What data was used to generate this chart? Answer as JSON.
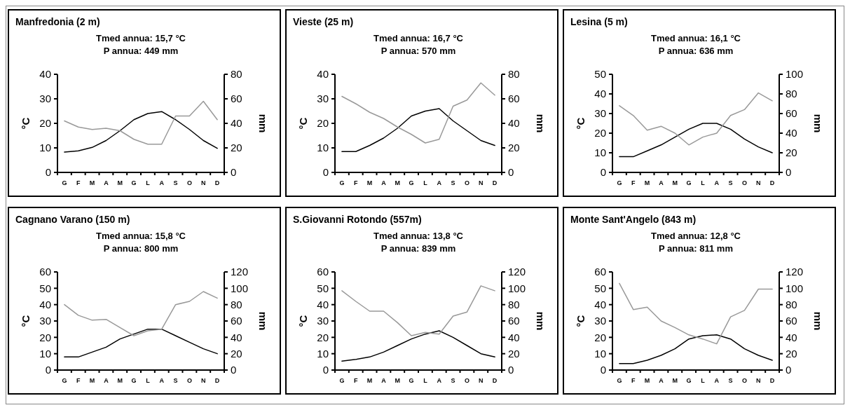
{
  "chart_data": [
    {
      "type": "line",
      "title": "Manfredonia (2 m)",
      "subtitle": "Tmed annua: 15,7 °C",
      "annotations": [
        "P annua: 449 mm"
      ],
      "ylabel": "°C",
      "y2label": "mm",
      "categories": [
        "G",
        "F",
        "M",
        "A",
        "M",
        "G",
        "L",
        "A",
        "S",
        "O",
        "N",
        "D"
      ],
      "ylim": [
        0,
        40
      ],
      "yticks": [
        0,
        10,
        20,
        30,
        40
      ],
      "y2lim": [
        0,
        80
      ],
      "y2ticks": [
        0,
        20,
        40,
        60,
        80
      ],
      "series": [
        {
          "color": "#000000",
          "values": [
            8.3,
            8.8,
            10.2,
            13,
            17,
            21.5,
            24,
            24.8,
            21.5,
            17.5,
            13,
            9.8
          ]
        },
        {
          "color": "#999999",
          "axis": "y2",
          "values": [
            42,
            37,
            35,
            36,
            34,
            27,
            23,
            23,
            46,
            46,
            58,
            43
          ]
        }
      ]
    },
    {
      "type": "line",
      "title": "Vieste (25 m)",
      "subtitle": "Tmed annua: 16,7 °C",
      "annotations": [
        "P annua: 570 mm"
      ],
      "ylabel": "°C",
      "y2label": "mm",
      "categories": [
        "G",
        "F",
        "M",
        "A",
        "M",
        "G",
        "L",
        "A",
        "S",
        "O",
        "N",
        "D"
      ],
      "ylim": [
        0,
        40
      ],
      "yticks": [
        0,
        10,
        20,
        30,
        40
      ],
      "y2lim": [
        0,
        80
      ],
      "y2ticks": [
        0,
        20,
        40,
        60,
        80
      ],
      "series": [
        {
          "color": "#000000",
          "values": [
            8.5,
            8.5,
            11,
            14,
            18,
            23,
            25,
            26,
            21,
            17,
            13,
            11
          ]
        },
        {
          "color": "#999999",
          "axis": "y2",
          "values": [
            62,
            56,
            49,
            44,
            37,
            31,
            24,
            27,
            54,
            59,
            73,
            63
          ]
        }
      ]
    },
    {
      "type": "line",
      "title": "Lesina (5 m)",
      "subtitle": "Tmed annua: 16,1 °C",
      "annotations": [
        "P annua: 636 mm"
      ],
      "ylabel": "°C",
      "y2label": "mm",
      "categories": [
        "G",
        "F",
        "M",
        "A",
        "M",
        "G",
        "L",
        "A",
        "S",
        "O",
        "N",
        "D"
      ],
      "ylim": [
        0,
        50
      ],
      "yticks": [
        0,
        10,
        20,
        30,
        40,
        50
      ],
      "y2lim": [
        0,
        100
      ],
      "y2ticks": [
        0,
        20,
        40,
        60,
        80,
        100
      ],
      "series": [
        {
          "color": "#000000",
          "values": [
            8,
            8,
            11,
            14,
            18,
            22,
            25,
            25,
            22,
            17,
            13,
            10
          ]
        },
        {
          "color": "#999999",
          "axis": "y2",
          "values": [
            68,
            58,
            43,
            47,
            40,
            28,
            36,
            40,
            58,
            64,
            81,
            73
          ]
        }
      ]
    },
    {
      "type": "line",
      "title": "Cagnano Varano (150 m)",
      "subtitle": "Tmed annua: 15,8 °C",
      "annotations": [
        "P annua: 800 mm"
      ],
      "ylabel": "°C",
      "y2label": "mm",
      "categories": [
        "G",
        "F",
        "M",
        "A",
        "M",
        "G",
        "L",
        "A",
        "S",
        "O",
        "N",
        "D"
      ],
      "ylim": [
        0,
        60
      ],
      "yticks": [
        0,
        10,
        20,
        30,
        40,
        50,
        60
      ],
      "y2lim": [
        0,
        120
      ],
      "y2ticks": [
        0,
        20,
        40,
        60,
        80,
        100,
        120
      ],
      "series": [
        {
          "color": "#000000",
          "values": [
            8,
            8,
            11,
            14,
            19,
            22,
            25,
            25,
            21,
            17,
            13,
            10
          ]
        },
        {
          "color": "#999999",
          "axis": "y2",
          "values": [
            80,
            67,
            61,
            62,
            52,
            42,
            48,
            50,
            80,
            84,
            96,
            88
          ]
        }
      ]
    },
    {
      "type": "line",
      "title": "S.Giovanni Rotondo (557m)",
      "subtitle": "Tmed annua: 13,8 °C",
      "annotations": [
        "P annua: 839 mm"
      ],
      "ylabel": "°C",
      "y2label": "mm",
      "categories": [
        "G",
        "F",
        "M",
        "A",
        "M",
        "G",
        "L",
        "A",
        "S",
        "O",
        "N",
        "D"
      ],
      "ylim": [
        0,
        60
      ],
      "yticks": [
        0,
        10,
        20,
        30,
        40,
        50,
        60
      ],
      "y2lim": [
        0,
        120
      ],
      "y2ticks": [
        0,
        20,
        40,
        60,
        80,
        100,
        120
      ],
      "series": [
        {
          "color": "#000000",
          "values": [
            5.5,
            6.5,
            8,
            11,
            15,
            19,
            22,
            24,
            20,
            15,
            10,
            8
          ]
        },
        {
          "color": "#999999",
          "axis": "y2",
          "values": [
            97,
            84,
            72,
            72,
            58,
            42,
            46,
            44,
            66,
            71,
            103,
            97
          ]
        }
      ]
    },
    {
      "type": "line",
      "title": "Monte Sant'Angelo (843 m)",
      "subtitle": "Tmed annua: 12,8 °C",
      "annotations": [
        "P annua: 811 mm"
      ],
      "ylabel": "°C",
      "y2label": "mm",
      "categories": [
        "G",
        "F",
        "M",
        "A",
        "M",
        "G",
        "L",
        "A",
        "S",
        "O",
        "N",
        "D"
      ],
      "ylim": [
        0,
        60
      ],
      "yticks": [
        0,
        10,
        20,
        30,
        40,
        50,
        60
      ],
      "y2lim": [
        0,
        120
      ],
      "y2ticks": [
        0,
        20,
        40,
        60,
        80,
        100,
        120
      ],
      "series": [
        {
          "color": "#000000",
          "values": [
            4,
            4,
            6,
            9,
            13,
            19,
            21,
            21.5,
            19,
            13,
            9,
            6
          ]
        },
        {
          "color": "#999999",
          "axis": "y2",
          "values": [
            106,
            74,
            77,
            60,
            52,
            43,
            38,
            32,
            65,
            73,
            99,
            99
          ]
        }
      ]
    }
  ]
}
